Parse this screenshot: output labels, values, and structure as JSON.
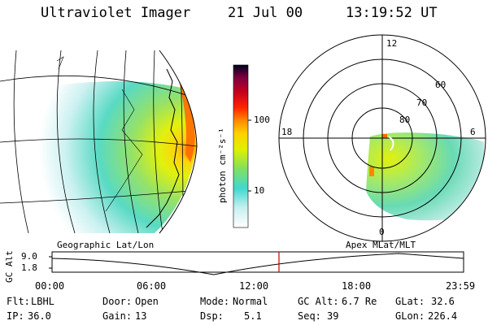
{
  "header": {
    "instrument": "Ultraviolet Imager",
    "date": "21 Jul 00",
    "time": "13:19:52 UT"
  },
  "colorbar": {
    "unit_label": "photon cm⁻²s⁻¹",
    "ticks": [
      "100",
      "10"
    ],
    "scale": "log",
    "colors": [
      "#ffffff",
      "#c8f0f0",
      "#40d8d0",
      "#80e060",
      "#e0f000",
      "#ffd000",
      "#ff8800",
      "#ff2000",
      "#c00020",
      "#800040",
      "#000020"
    ]
  },
  "left_map": {
    "label": "Geographic Lat/Lon"
  },
  "polar_plot": {
    "label": "Apex MLat/MLT",
    "mlt_labels": {
      "top": "12",
      "left": "18",
      "right": "6",
      "bottom": "0"
    },
    "lat_labels": [
      "60",
      "70",
      "80"
    ]
  },
  "altitude_plot": {
    "ylabel": "GC Alt",
    "yticks": [
      "9.0",
      "1.8"
    ],
    "xticks": [
      "00:00",
      "06:00",
      "12:00",
      "18:00",
      "23:59"
    ],
    "current_time_color": "#cc0000"
  },
  "footer": {
    "row1": [
      {
        "key": "Flt:",
        "value": "LBHL"
      },
      {
        "key": "Door:",
        "value": "Open"
      },
      {
        "key": "Mode:",
        "value": "Normal"
      },
      {
        "key": "GC Alt:",
        "value": "6.7 Re"
      },
      {
        "key": "GLat:",
        "value": "32.6"
      }
    ],
    "row2": [
      {
        "key": "IP:",
        "value": "36.0"
      },
      {
        "key": "Gain:",
        "value": "13"
      },
      {
        "key": "Dsp:",
        "value": "5.1"
      },
      {
        "key": "Seq:",
        "value": "39"
      },
      {
        "key": "GLon:",
        "value": "226.4"
      }
    ]
  }
}
